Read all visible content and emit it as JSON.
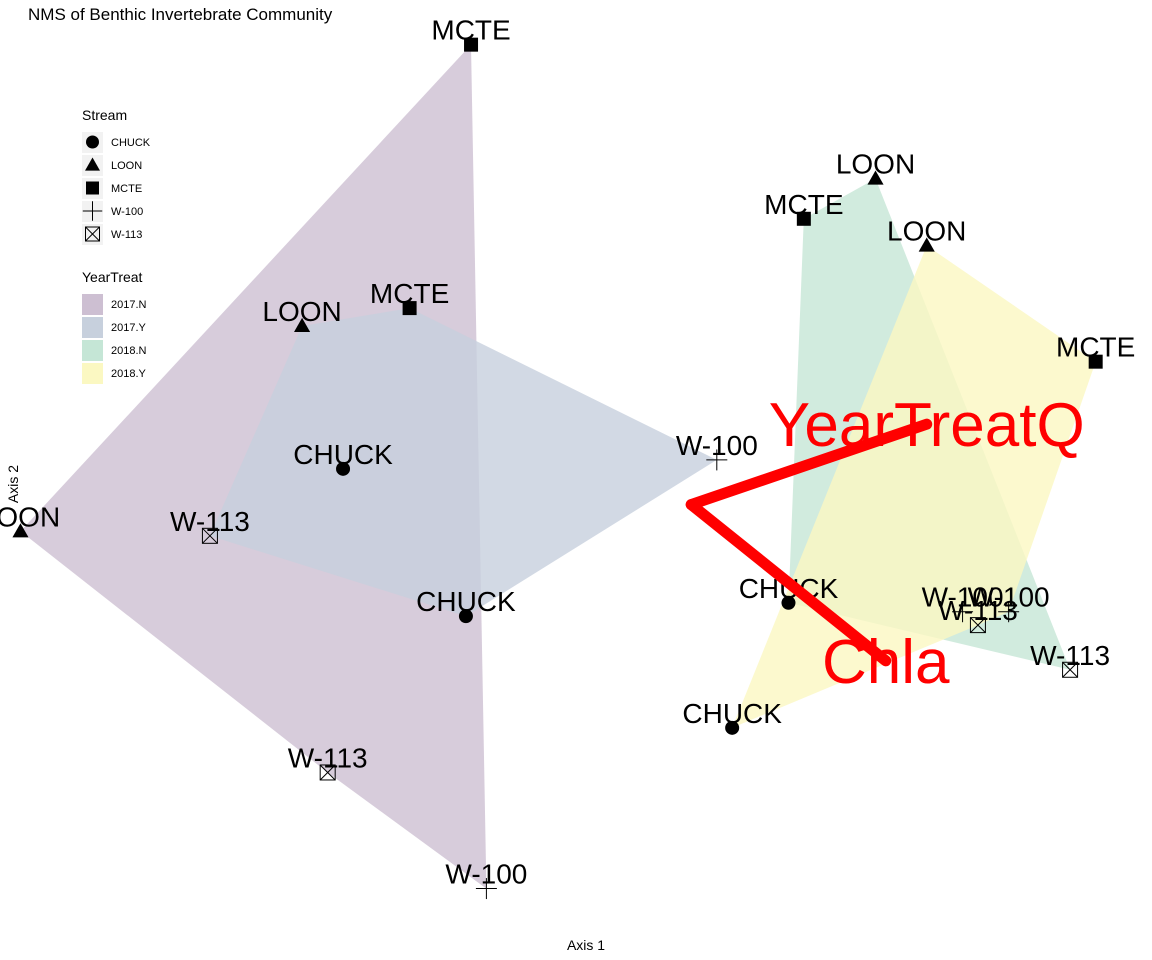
{
  "chart_data": {
    "type": "scatter",
    "title": "NMS of Benthic Invertebrate Community",
    "xlabel": "Axis 1",
    "ylabel": "Axis 2",
    "xlim": [
      -1.25,
      1.0
    ],
    "ylim": [
      -1.0,
      1.15
    ],
    "grid": false,
    "legend_placement": "top-left",
    "legends": [
      {
        "title": "Stream",
        "entries": [
          {
            "label": "CHUCK",
            "shape": "circle"
          },
          {
            "label": "LOON",
            "shape": "triangle"
          },
          {
            "label": "MCTE",
            "shape": "square"
          },
          {
            "label": "W-100",
            "shape": "plus"
          },
          {
            "label": "W-113",
            "shape": "boxx"
          }
        ]
      },
      {
        "title": "YearTreat",
        "entries": [
          {
            "label": "2017.N",
            "color": "#cdbfd2"
          },
          {
            "label": "2017.Y",
            "color": "#c7d0dd"
          },
          {
            "label": "2018.N",
            "color": "#c5e6d6"
          },
          {
            "label": "2018.Y",
            "color": "#fbf8c2"
          }
        ]
      }
    ],
    "hulls": [
      {
        "group": "2017.N",
        "color": "#cdbfd2",
        "points": [
          "W-100",
          "W-113",
          "LOON",
          "MCTE"
        ],
        "xy": [
          [
            -0.3,
            -0.84
          ],
          [
            -0.61,
            -0.58
          ],
          [
            -1.21,
            -0.04
          ],
          [
            -0.33,
            1.05
          ]
        ]
      },
      {
        "group": "2017.Y",
        "color": "#c7d0dd",
        "points": [
          "W-113",
          "LOON",
          "MCTE",
          "W-100",
          "CHUCK"
        ],
        "xy": [
          [
            -0.84,
            -0.05
          ],
          [
            -0.66,
            0.42
          ],
          [
            -0.45,
            0.46
          ],
          [
            0.15,
            0.12
          ],
          [
            -0.34,
            -0.23
          ]
        ]
      },
      {
        "group": "2018.N",
        "color": "#c5e6d6",
        "points": [
          "CHUCK",
          "MCTE",
          "LOON",
          "W-113"
        ],
        "xy": [
          [
            0.29,
            -0.2
          ],
          [
            0.32,
            0.66
          ],
          [
            0.46,
            0.75
          ],
          [
            0.84,
            -0.35
          ]
        ]
      },
      {
        "group": "2018.Y",
        "color": "#fbf8c2",
        "points": [
          "CHUCK",
          "LOON",
          "MCTE",
          "W-100",
          "W-113"
        ],
        "xy": [
          [
            0.18,
            -0.48
          ],
          [
            0.56,
            0.6
          ],
          [
            0.89,
            0.34
          ],
          [
            0.72,
            -0.22
          ],
          [
            0.66,
            -0.25
          ]
        ]
      }
    ],
    "points": [
      {
        "label": "MCTE",
        "stream": "MCTE",
        "group": "2017.N",
        "x": -0.33,
        "y": 1.05
      },
      {
        "label": "LOON",
        "stream": "LOON",
        "group": "2017.N",
        "x": -1.21,
        "y": -0.04
      },
      {
        "label": "W-113",
        "stream": "W-113",
        "group": "2017.N",
        "x": -0.61,
        "y": -0.58
      },
      {
        "label": "W-100",
        "stream": "W-100",
        "group": "2017.N",
        "x": -0.3,
        "y": -0.84
      },
      {
        "label": "LOON",
        "stream": "LOON",
        "group": "2017.Y",
        "x": -0.66,
        "y": 0.42
      },
      {
        "label": "MCTE",
        "stream": "MCTE",
        "group": "2017.Y",
        "x": -0.45,
        "y": 0.46
      },
      {
        "label": "CHUCK",
        "stream": "CHUCK",
        "group": "2017.Y",
        "x": -0.58,
        "y": 0.1
      },
      {
        "label": "W-113",
        "stream": "W-113",
        "group": "2017.Y",
        "x": -0.84,
        "y": -0.05
      },
      {
        "label": "CHUCK",
        "stream": "CHUCK",
        "group": "2017.Y",
        "x": -0.34,
        "y": -0.23
      },
      {
        "label": "W-100",
        "stream": "W-100",
        "group": "2017.Y",
        "x": 0.15,
        "y": 0.12
      },
      {
        "label": "LOON",
        "stream": "LOON",
        "group": "2018.N",
        "x": 0.46,
        "y": 0.75
      },
      {
        "label": "MCTE",
        "stream": "MCTE",
        "group": "2018.N",
        "x": 0.32,
        "y": 0.66
      },
      {
        "label": "CHUCK",
        "stream": "CHUCK",
        "group": "2018.N",
        "x": 0.29,
        "y": -0.2
      },
      {
        "label": "W-100",
        "stream": "W-100",
        "group": "2018.N",
        "x": 0.63,
        "y": -0.22
      },
      {
        "label": "W-113",
        "stream": "W-113",
        "group": "2018.N",
        "x": 0.84,
        "y": -0.35
      },
      {
        "label": "LOON",
        "stream": "LOON",
        "group": "2018.Y",
        "x": 0.56,
        "y": 0.6
      },
      {
        "label": "MCTE",
        "stream": "MCTE",
        "group": "2018.Y",
        "x": 0.89,
        "y": 0.34
      },
      {
        "label": "CHUCK",
        "stream": "CHUCK",
        "group": "2018.Y",
        "x": 0.18,
        "y": -0.48
      },
      {
        "label": "W-100",
        "stream": "W-100",
        "group": "2018.Y",
        "x": 0.72,
        "y": -0.22
      },
      {
        "label": "W-113",
        "stream": "W-113",
        "group": "2018.Y",
        "x": 0.66,
        "y": -0.25
      }
    ],
    "vectors": [
      {
        "label": "YearTreatQ",
        "color": "#ff0000",
        "x0": 0.1,
        "y0": 0.02,
        "x1": 0.56,
        "y1": 0.2
      },
      {
        "label": "Chla",
        "color": "#ff0000",
        "x0": 0.1,
        "y0": 0.02,
        "x1": 0.48,
        "y1": -0.33
      }
    ]
  }
}
